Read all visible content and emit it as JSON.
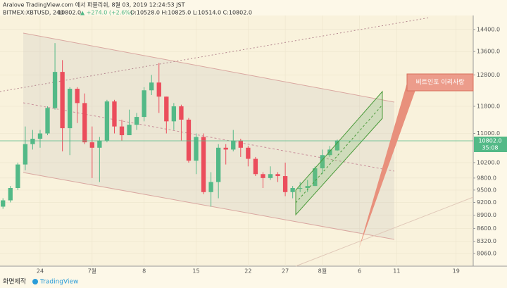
{
  "header": {
    "line1": "Aralove TradingView.com 에서 퍼블리쉬, 8월 03, 2019 12:24:53 JST",
    "symbol": "BITMEX:XBTUSD, 240",
    "last": "10802.0",
    "change": "▲ +274.0 (+2.6%)",
    "ohlc": "O:10528.0 H:10825.0 L:10514.0 C:10802.0"
  },
  "annotation": "비트인포 이리사랑",
  "price_tag": {
    "price": "10802.0",
    "countdown": "35:08"
  },
  "footer": {
    "made_by": "화면제작",
    "brand": "TradingView"
  },
  "chart_data": {
    "type": "candlestick",
    "x": [
      -5,
      -4,
      -3,
      -2,
      -1,
      0,
      1,
      2,
      3,
      4,
      5,
      6,
      7,
      8,
      9,
      10,
      11,
      12,
      13,
      14,
      15,
      16,
      17,
      18,
      19,
      20,
      21,
      22,
      23,
      24,
      25,
      26,
      27,
      28,
      29,
      30,
      31,
      32,
      33,
      34,
      35,
      36,
      37,
      38,
      39,
      40
    ],
    "series": [
      {
        "name": "BITMEX:XBTUSD",
        "up_color": "#53b987",
        "down_color": "#eb4d5c",
        "open": [
          9100,
          9250,
          9550,
          10150,
          10700,
          10850,
          11000,
          11750,
          12900,
          11150,
          12350,
          11900,
          10750,
          10600,
          10800,
          11950,
          11200,
          10950,
          11250,
          11480,
          12300,
          12550,
          12100,
          11350,
          11800,
          11400,
          10250,
          10900,
          9450,
          9700,
          10600,
          10550,
          10800,
          10600,
          10300,
          9900,
          9800,
          9900,
          9850,
          9450,
          9550,
          9550,
          9600,
          10050,
          10400,
          10528
        ],
        "high": [
          9300,
          9600,
          10200,
          11200,
          11100,
          11100,
          11800,
          13900,
          13300,
          12400,
          12400,
          12200,
          11200,
          10900,
          12000,
          12000,
          11400,
          11700,
          11600,
          12400,
          12800,
          13200,
          12100,
          11900,
          11850,
          11450,
          11000,
          11000,
          9950,
          10700,
          10700,
          11100,
          10850,
          10650,
          10350,
          9950,
          10100,
          9950,
          10200,
          9600,
          9700,
          9750,
          10100,
          10550,
          10650,
          10825
        ],
        "low": [
          9050,
          9200,
          9500,
          10000,
          10550,
          10600,
          10950,
          11700,
          10500,
          10400,
          11300,
          10700,
          9800,
          9700,
          10750,
          11000,
          10800,
          10950,
          11100,
          11350,
          12150,
          11600,
          11000,
          11100,
          10800,
          10200,
          9900,
          9400,
          9100,
          9300,
          10150,
          10500,
          10350,
          10100,
          9850,
          9550,
          9750,
          9700,
          9350,
          9300,
          9450,
          9450,
          9600,
          9900,
          10350,
          10514
        ],
        "close": [
          9250,
          9550,
          10150,
          10700,
          10850,
          11000,
          11750,
          12900,
          11150,
          12350,
          11900,
          10750,
          10600,
          10800,
          11950,
          11200,
          10950,
          11250,
          11480,
          12300,
          12550,
          12100,
          11350,
          11800,
          11400,
          10250,
          10900,
          9450,
          9700,
          10600,
          10550,
          10800,
          10600,
          10300,
          9900,
          9800,
          9900,
          9850,
          9450,
          9550,
          9550,
          9600,
          10050,
          10400,
          10550,
          10802
        ]
      }
    ],
    "xlim": [
      -5.4,
      58.3
    ],
    "xticks": [
      {
        "value": 0,
        "label": "24"
      },
      {
        "value": 7,
        "label": "7월"
      },
      {
        "value": 14,
        "label": "8"
      },
      {
        "value": 21,
        "label": "15"
      },
      {
        "value": 28,
        "label": "22"
      },
      {
        "value": 33,
        "label": "27"
      },
      {
        "value": 38,
        "label": "8월"
      },
      {
        "value": 43,
        "label": "6"
      },
      {
        "value": 48,
        "label": "11"
      },
      {
        "value": 56,
        "label": "19"
      }
    ],
    "ylim": [
      7800,
      14930
    ],
    "log_scale": true,
    "grid": true,
    "yticks": [
      {
        "value": 14400,
        "label": "14400.0"
      },
      {
        "value": 13600,
        "label": "13600.0"
      },
      {
        "value": 12800,
        "label": "12800.0"
      },
      {
        "value": 11800,
        "label": "11800.0"
      },
      {
        "value": 11000,
        "label": "11000.0"
      },
      {
        "value": 10200,
        "label": "10200.0"
      },
      {
        "value": 9800,
        "label": "9800.0"
      },
      {
        "value": 9500,
        "label": "9500.0"
      },
      {
        "value": 9200,
        "label": "9200.0"
      },
      {
        "value": 8900,
        "label": "8900.0"
      },
      {
        "value": 8600,
        "label": "8600.0"
      },
      {
        "value": 8320,
        "label": "8320.0"
      },
      {
        "value": 8060,
        "label": "8060.0"
      }
    ]
  }
}
